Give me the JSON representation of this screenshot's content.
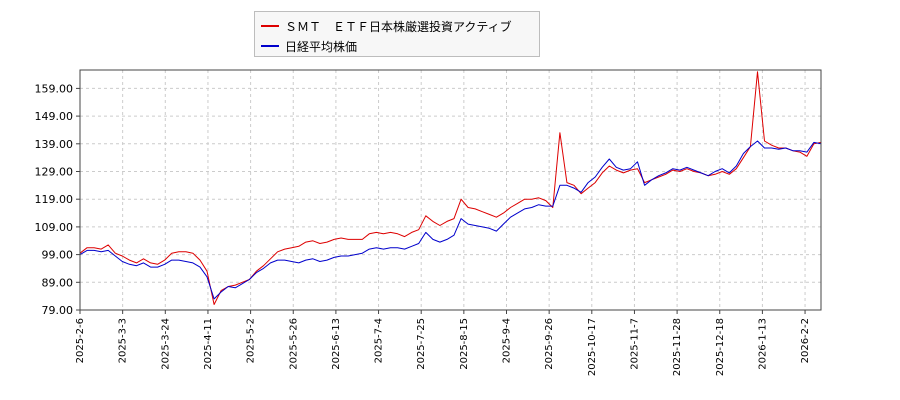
{
  "chart_data": {
    "type": "line",
    "ylim": [
      79,
      163
    ],
    "y_ticks": [
      "79.00",
      "89.00",
      "99.00",
      "109.00",
      "119.00",
      "129.00",
      "139.00",
      "149.00",
      "159.00"
    ],
    "x_ticks": [
      "2025-2-6",
      "2025-3-3",
      "2025-3-24",
      "2025-4-11",
      "2025-5-2",
      "2025-5-26",
      "2025-6-13",
      "2025-7-4",
      "2025-7-25",
      "2025-8-15",
      "2025-9-4",
      "2025-9-26",
      "2025-10-17",
      "2025-11-7",
      "2025-11-28",
      "2025-12-18",
      "2026-1-13",
      "2026-2-2"
    ],
    "grid": true,
    "legend_position": "top-center",
    "series": [
      {
        "name": "ＳＭＴ　ＥＴＦ日本株厳選投資アクティブ",
        "color": "#dd0000",
        "values": [
          99.5,
          101.5,
          101.5,
          101.0,
          102.5,
          99.5,
          98.5,
          97.0,
          96.0,
          97.5,
          96.0,
          95.5,
          97.0,
          99.5,
          100.0,
          100.0,
          99.5,
          97.0,
          93.0,
          81.0,
          86.0,
          87.5,
          88.0,
          89.0,
          90.0,
          93.0,
          95.0,
          97.5,
          100.0,
          101.0,
          101.5,
          102.0,
          103.5,
          104.0,
          103.0,
          103.5,
          104.5,
          105.0,
          104.5,
          104.5,
          104.5,
          106.5,
          107.0,
          106.5,
          107.0,
          106.5,
          105.5,
          107.0,
          108.0,
          113.0,
          111.0,
          109.5,
          111.0,
          112.0,
          119.0,
          116.0,
          115.5,
          114.5,
          113.5,
          112.5,
          114.0,
          116.0,
          117.5,
          119.0,
          119.0,
          119.5,
          118.5,
          116.0,
          143.0,
          125.0,
          124.0,
          121.0,
          123.0,
          125.0,
          128.5,
          131.0,
          129.5,
          128.5,
          129.5,
          130.0,
          125.0,
          126.0,
          127.0,
          128.0,
          129.5,
          129.0,
          130.0,
          129.0,
          128.5,
          127.5,
          128.0,
          129.0,
          128.0,
          130.0,
          134.0,
          138.0,
          165.0,
          140.0,
          138.5,
          137.5,
          137.5,
          136.5,
          136.0,
          134.5,
          139.0,
          139.5
        ],
        "legend_text": "ＳＭＴ　ＥＴＦ日本株厳選投資アクティブ"
      },
      {
        "name": "日経平均株価",
        "color": "#0000cc",
        "values": [
          99.0,
          100.5,
          100.5,
          100.0,
          100.5,
          98.5,
          96.5,
          95.5,
          95.0,
          96.0,
          94.5,
          94.5,
          95.5,
          97.0,
          97.0,
          96.5,
          96.0,
          94.5,
          91.0,
          83.0,
          85.5,
          87.5,
          87.0,
          88.5,
          90.0,
          92.5,
          94.0,
          96.0,
          97.0,
          97.0,
          96.5,
          96.0,
          97.0,
          97.5,
          96.5,
          97.0,
          98.0,
          98.5,
          98.5,
          99.0,
          99.5,
          101.0,
          101.5,
          101.0,
          101.5,
          101.5,
          101.0,
          102.0,
          103.0,
          107.0,
          104.5,
          103.5,
          104.5,
          106.0,
          112.0,
          110.0,
          109.5,
          109.0,
          108.5,
          107.5,
          110.0,
          112.5,
          114.0,
          115.5,
          116.0,
          117.0,
          116.5,
          116.5,
          124.0,
          124.0,
          123.0,
          121.5,
          125.0,
          127.0,
          130.5,
          133.5,
          130.5,
          129.5,
          130.0,
          132.5,
          124.0,
          126.0,
          127.5,
          128.5,
          130.0,
          129.5,
          130.5,
          129.5,
          128.5,
          127.5,
          129.0,
          130.0,
          128.5,
          131.0,
          135.5,
          138.0,
          140.0,
          137.5,
          137.5,
          137.0,
          137.5,
          136.5,
          136.5,
          136.0,
          139.5,
          139.0
        ],
        "legend_text": "日経平均株価"
      }
    ]
  }
}
